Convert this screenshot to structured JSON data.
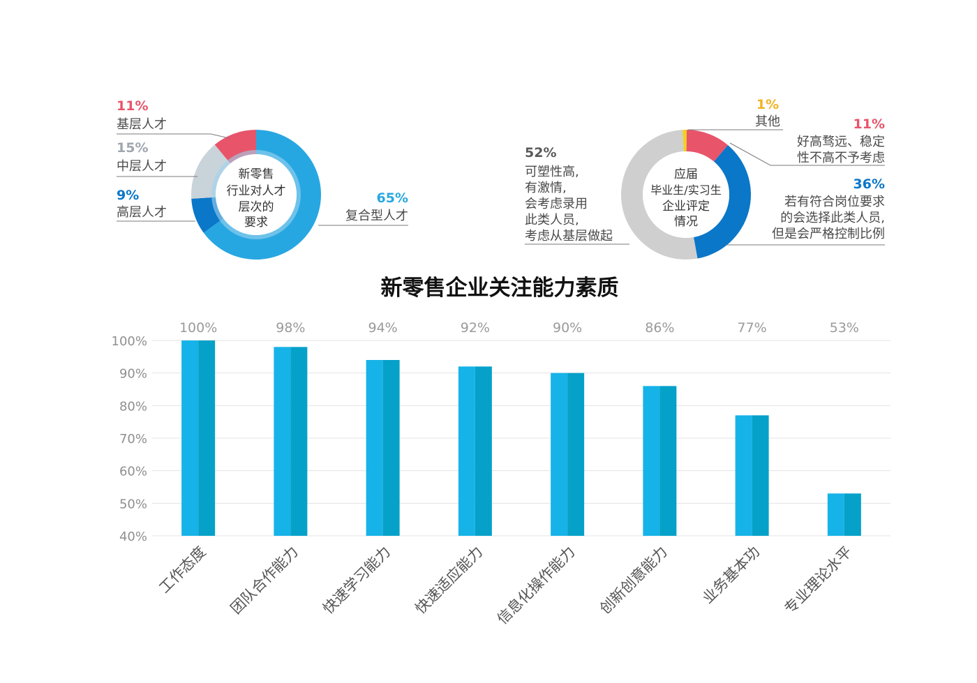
{
  "colors": {
    "red": "#e8546a",
    "light_gray": "#c9d3da",
    "dark_blue": "#0b77c8",
    "sky_blue": "#27a7e1",
    "yellow": "#f3d11e",
    "donut_gray": "#cfcfcf",
    "bar_light": "#16b3e8",
    "bar_dark": "#06a1c9",
    "axis_text": "#8f8f8f",
    "leader": "#7a7a7a"
  },
  "donut1": {
    "center_lines": [
      "新零售",
      "行业对人才",
      "层次的",
      "要求"
    ],
    "items": [
      {
        "pct": "11%",
        "label": "基层人才",
        "color": "#e8546a"
      },
      {
        "pct": "15%",
        "label": "中层人才",
        "color": "#9ea6ad"
      },
      {
        "pct": "9%",
        "label": "高层人才",
        "color": "#0b77c8"
      },
      {
        "pct": "65%",
        "label": "复合型人才",
        "color": "#27a7e1"
      }
    ]
  },
  "donut2": {
    "center_lines": [
      "应届",
      "毕业生/实习生",
      "企业评定",
      "情况"
    ],
    "other": {
      "pct": "1%",
      "label": "其他",
      "color": "#f0b324"
    },
    "low": {
      "pct": "11%",
      "lines": [
        "好高骛远、稳定",
        "性不高不予考虑"
      ],
      "color": "#e8546a"
    },
    "mid": {
      "pct": "36%",
      "lines": [
        "若有符合岗位要求",
        "的会选择此类人员,",
        "但是会严格控制比例"
      ],
      "color": "#0b77c8"
    },
    "high": {
      "pct": "52%",
      "lines": [
        "可塑性高,",
        "有激情,",
        "会考虑录用",
        "此类人员,",
        "考虑从基层做起"
      ],
      "color": "#5a5a5a"
    }
  },
  "chart_data": [
    {
      "type": "pie",
      "title": "新零售行业对人才层次的要求",
      "labels": [
        "基层人才",
        "中层人才",
        "高层人才",
        "复合型人才"
      ],
      "values": [
        11,
        15,
        9,
        65
      ]
    },
    {
      "type": "pie",
      "title": "应届毕业生/实习生企业评定情况",
      "labels": [
        "其他",
        "好高骛远、稳定性不高不予考虑",
        "若有符合岗位要求的会选择此类人员,但是会严格控制比例",
        "可塑性高,有激情,会考虑录用此类人员,考虑从基层做起"
      ],
      "values": [
        1,
        11,
        36,
        52
      ]
    },
    {
      "type": "bar",
      "title": "新零售企业关注能力素质",
      "categories": [
        "工作态度",
        "团队合作能力",
        "快速学习能力",
        "快速适应能力",
        "信息化操作能力",
        "创新创意能力",
        "业务基本功",
        "专业理论水平"
      ],
      "values": [
        100,
        98,
        94,
        92,
        90,
        86,
        77,
        53
      ],
      "value_labels": [
        "100%",
        "98%",
        "94%",
        "92%",
        "90%",
        "86%",
        "77%",
        "53%"
      ],
      "ylim": [
        40,
        100
      ],
      "yticks": [
        40,
        50,
        60,
        70,
        80,
        90,
        100
      ],
      "ytick_labels": [
        "40%",
        "50%",
        "60%",
        "70%",
        "80%",
        "90%",
        "100%"
      ],
      "grid": true
    }
  ]
}
